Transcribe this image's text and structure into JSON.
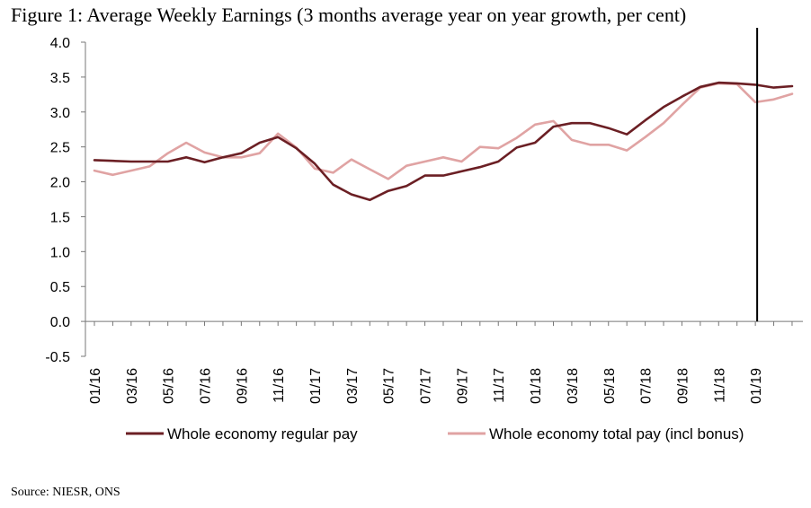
{
  "title": "Figure 1: Average Weekly Earnings (3 months average year on year growth, per cent)",
  "source": "Source: NIESR, ONS",
  "chart_data": {
    "type": "line",
    "ylim": [
      -0.5,
      4.0
    ],
    "yticks": [
      "4.0",
      "3.5",
      "3.0",
      "2.5",
      "2.0",
      "1.5",
      "1.0",
      "0.5",
      "0.0",
      "-0.5"
    ],
    "ytick_values": [
      4.0,
      3.5,
      3.0,
      2.5,
      2.0,
      1.5,
      1.0,
      0.5,
      0.0,
      -0.5
    ],
    "x": [
      "01/16",
      "02/16",
      "03/16",
      "04/16",
      "05/16",
      "06/16",
      "07/16",
      "08/16",
      "09/16",
      "10/16",
      "11/16",
      "12/16",
      "01/17",
      "02/17",
      "03/17",
      "04/17",
      "05/17",
      "06/17",
      "07/17",
      "08/17",
      "09/17",
      "10/17",
      "11/17",
      "12/17",
      "01/18",
      "02/18",
      "03/18",
      "04/18",
      "05/18",
      "06/18",
      "07/18",
      "08/18",
      "09/18",
      "10/18",
      "11/18",
      "12/18",
      "01/19",
      "02/19",
      "03/19"
    ],
    "xtick_labels": [
      "01/16",
      "03/16",
      "05/16",
      "07/16",
      "09/16",
      "11/16",
      "01/17",
      "03/17",
      "05/17",
      "07/17",
      "09/17",
      "11/17",
      "01/18",
      "03/18",
      "05/18",
      "07/18",
      "09/18",
      "11/18",
      "01/19"
    ],
    "grid": false,
    "legend_position": "bottom",
    "vertical_marker_at": "01/19",
    "series": [
      {
        "name": "Whole economy regular pay",
        "color": "#6b1f24",
        "values": [
          2.31,
          2.3,
          2.29,
          2.29,
          2.29,
          2.35,
          2.28,
          2.35,
          2.41,
          2.56,
          2.64,
          2.48,
          2.26,
          1.96,
          1.82,
          1.74,
          1.87,
          1.94,
          2.09,
          2.09,
          2.15,
          2.21,
          2.29,
          2.49,
          2.56,
          2.79,
          2.84,
          2.84,
          2.77,
          2.68,
          2.88,
          3.07,
          3.22,
          3.36,
          3.42,
          3.41,
          3.39,
          3.35,
          3.37
        ]
      },
      {
        "name": "Whole economy total pay (incl bonus)",
        "color": "#e0a3a3",
        "values": [
          2.16,
          2.1,
          2.16,
          2.22,
          2.41,
          2.56,
          2.42,
          2.35,
          2.35,
          2.41,
          2.69,
          2.49,
          2.19,
          2.13,
          2.32,
          2.18,
          2.04,
          2.23,
          2.29,
          2.35,
          2.29,
          2.5,
          2.48,
          2.63,
          2.82,
          2.87,
          2.6,
          2.53,
          2.53,
          2.45,
          2.64,
          2.84,
          3.1,
          3.35,
          3.41,
          3.4,
          3.14,
          3.18,
          3.26
        ]
      }
    ]
  }
}
